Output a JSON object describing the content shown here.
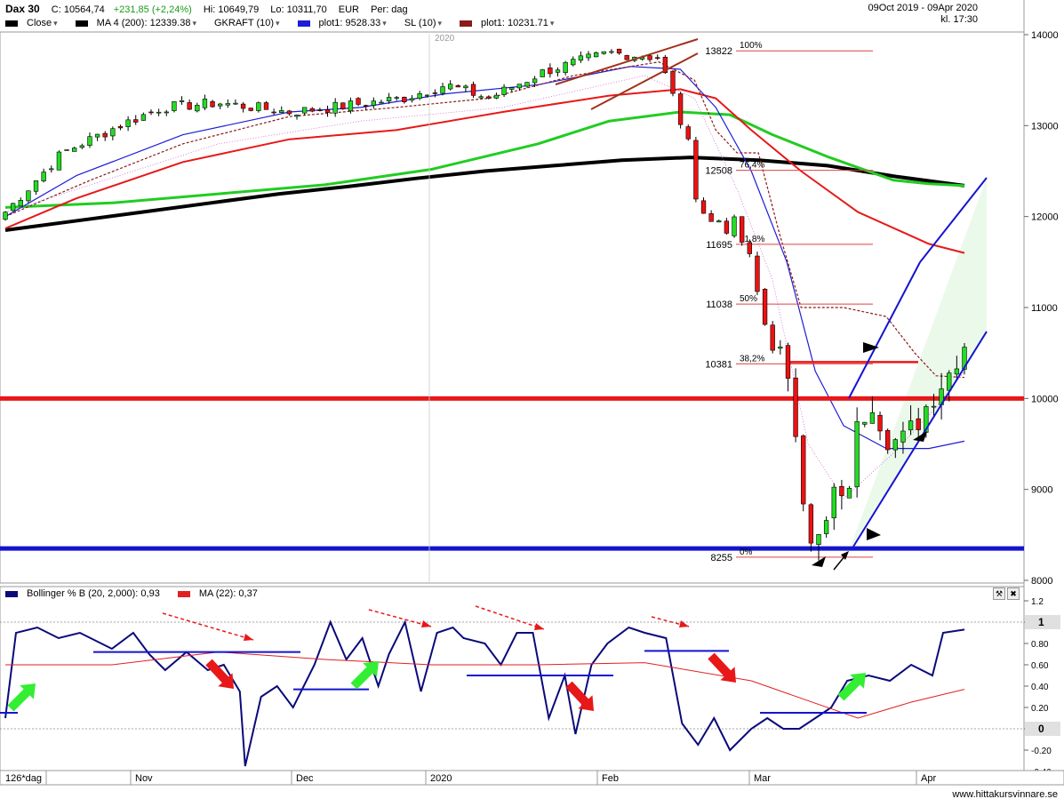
{
  "header": {
    "instrument": "Dax 30",
    "close": "C: 10564,74",
    "change": "+231,85 (+2,24%)",
    "hi": "Hi: 10649,79",
    "lo": "Lo: 10311,70",
    "currency": "EUR",
    "period": "Per: dag",
    "date_range": "09Oct 2019 - 09Apr 2020",
    "time": "kl. 17:30",
    "legend": [
      {
        "label": "Close",
        "color": "#000000"
      },
      {
        "label": "MA 4 (200): 12339.38",
        "color": "#000000"
      },
      {
        "label": "GKRAFT (10)",
        "color": "#ffffff"
      },
      {
        "label": "plot1: 9528.33",
        "color": "#1d1dd6"
      },
      {
        "label": "SL (10)",
        "color": "#ffffff"
      },
      {
        "label": "plot1: 10231.71",
        "color": "#8b1a1a"
      }
    ]
  },
  "indicator": {
    "legend": [
      {
        "label": "Bollinger % B (20, 2,000): 0,93",
        "color": "#0a0a7a"
      },
      {
        "label": "MA (22): 0,37",
        "color": "#e02020"
      }
    ]
  },
  "footer": {
    "range_label": "126*dag",
    "watermark": "www.hittakursvinnare.se"
  },
  "chart_data": [
    {
      "type": "candlestick",
      "title": "Dax 30",
      "ylim": [
        7800,
        14150
      ],
      "y_ticks": [
        8000,
        9000,
        10000,
        11000,
        12000,
        13000,
        14000
      ],
      "y_tick_labels": [
        "8000",
        "9000",
        "10000",
        "11000",
        "12000",
        "13000",
        "14000"
      ],
      "x_labels": [
        "Nov",
        "Dec",
        "2020",
        "Feb",
        "Mar",
        "Apr"
      ],
      "year_marker": "2020",
      "grid": false,
      "horizontal_lines": [
        {
          "value": 10000,
          "color": "#e81818",
          "name": ""
        },
        {
          "value": 8350,
          "color": "#1414d0",
          "name": ""
        }
      ],
      "fibonacci": [
        {
          "pct": "100%",
          "value": "13822",
          "level": 13822
        },
        {
          "pct": "76,4%",
          "value": "12508",
          "level": 12508
        },
        {
          "pct": "61,8%",
          "value": "11695",
          "level": 11695
        },
        {
          "pct": "50%",
          "value": "11038",
          "level": 11038
        },
        {
          "pct": "38,2%",
          "value": "10381",
          "level": 10381
        },
        {
          "pct": "0%",
          "value": "8255",
          "level": 8255
        }
      ],
      "candles_sample": [
        {
          "date": "2019-10-09",
          "open": 12050,
          "high": 12180,
          "low": 11980,
          "close": 12150
        },
        {
          "date": "2020-02-19",
          "open": 13700,
          "high": 13800,
          "low": 13650,
          "close": 13780
        },
        {
          "date": "2020-03-09",
          "open": 9800,
          "high": 9950,
          "low": 9420,
          "close": 9450
        },
        {
          "date": "2020-03-18",
          "open": 8600,
          "high": 8750,
          "low": 8255,
          "close": 8440
        },
        {
          "date": "2020-04-09",
          "open": 10380,
          "high": 10650,
          "low": 10312,
          "close": 10565
        }
      ],
      "series": [
        {
          "name": "Close",
          "type": "candles"
        },
        {
          "name": "MA 4 (200): 12339.38",
          "color": "#000000",
          "values": [
            11850,
            11950,
            12050,
            12150,
            12250,
            12330,
            12420,
            12500,
            12560,
            12620,
            12650,
            12620,
            12560,
            12440,
            12340
          ]
        },
        {
          "name": "plot1: 9528.33",
          "color": "#1d1dd6",
          "values": []
        },
        {
          "name": "plot1: 10231.71",
          "color": "#8b1a1a",
          "values": []
        }
      ],
      "y_last_value": 10564.74
    },
    {
      "type": "line",
      "title": "Bollinger % B (20, 2,000): 0,93",
      "ylim": [
        -0.42,
        1.22
      ],
      "y_ticks": [
        -0.4,
        -0.2,
        0,
        0.2,
        0.4,
        0.6,
        0.8,
        1.0,
        1.2
      ],
      "y_tick_labels": [
        "-0.40",
        "-0.20",
        "0",
        "0.20",
        "0.40",
        "0.60",
        "0.80",
        "1",
        "1.2"
      ],
      "series": [
        {
          "name": "Bollinger % B (20, 2,000): 0,93",
          "color": "#0a0a7a",
          "values": []
        },
        {
          "name": "MA (22): 0,37",
          "color": "#e02020",
          "values": []
        }
      ]
    }
  ]
}
